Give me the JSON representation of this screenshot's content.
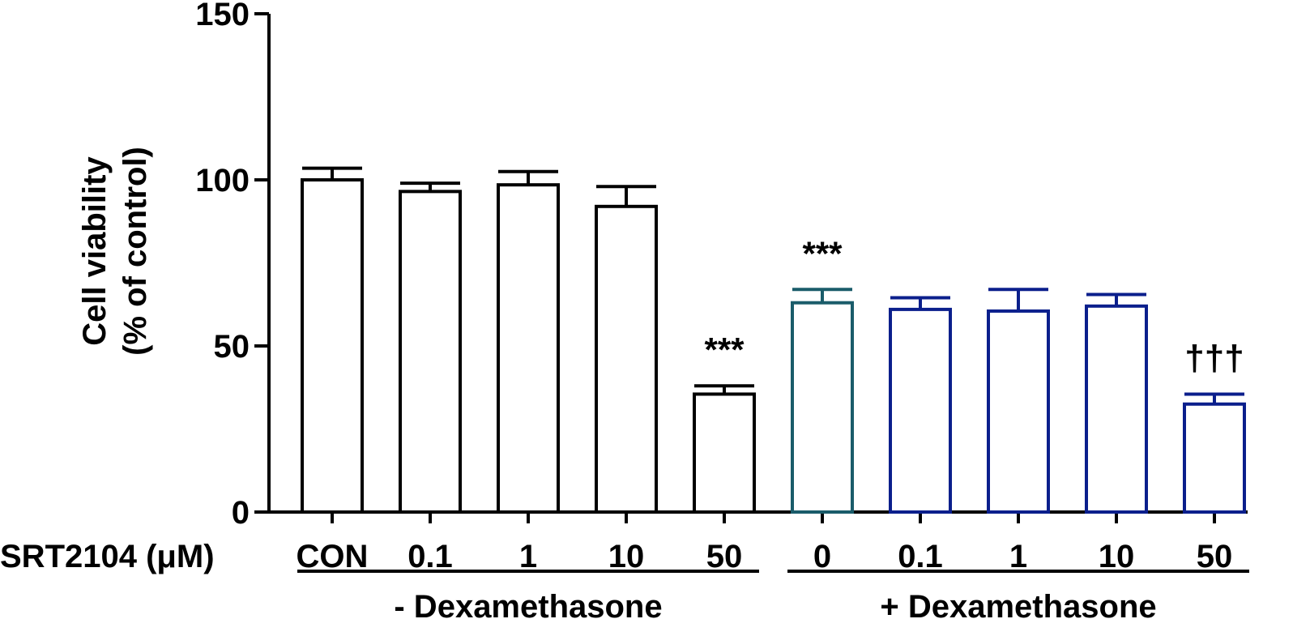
{
  "chart_data": {
    "type": "bar",
    "ylabel": "Cell viability",
    "ylabel_line2": "(% of control)",
    "xlabel_prefix": "SRT2104 (μM)",
    "ylim": [
      0,
      150
    ],
    "yticks": [
      "0",
      "50",
      "100",
      "150"
    ],
    "categories": [
      "CON",
      "0.1",
      "1",
      "10",
      "50",
      "0",
      "0.1",
      "1",
      "10",
      "50"
    ],
    "values": [
      100,
      96.5,
      98.5,
      92,
      35.5,
      63,
      61,
      60.5,
      62,
      32.5
    ],
    "errors": [
      3.5,
      2.5,
      4,
      6,
      2.5,
      4,
      3.5,
      6.5,
      3.5,
      3
    ],
    "bar_colors": [
      "#000000",
      "#000000",
      "#000000",
      "#000000",
      "#000000",
      "#1a5c6a",
      "#0b1f8c",
      "#0b1f8c",
      "#0b1f8c",
      "#0b1f8c"
    ],
    "annotations": [
      "",
      "",
      "",
      "",
      "***",
      "***",
      "",
      "",
      "",
      "†††"
    ],
    "groups": [
      {
        "label": "- Dexamethasone",
        "start": 0,
        "end": 4
      },
      {
        "label": "+ Dexamethasone",
        "start": 5,
        "end": 9
      }
    ]
  }
}
